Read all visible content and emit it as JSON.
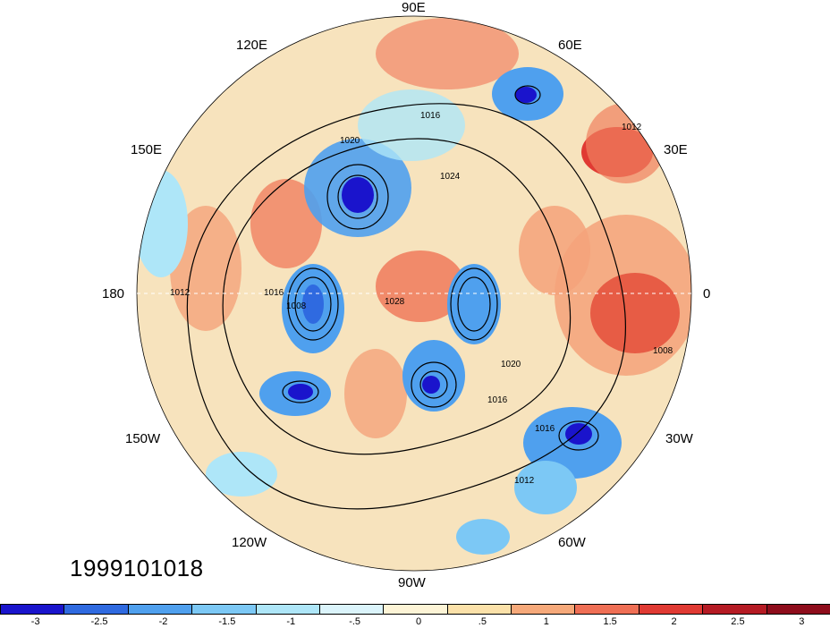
{
  "timestamp": "1999101018",
  "longitude_labels": {
    "lon_90e": "90E",
    "lon_60e": "60E",
    "lon_30e": "30E",
    "lon_0": "0",
    "lon_30w": "30W",
    "lon_60w": "60W",
    "lon_90w": "90W",
    "lon_120w": "120W",
    "lon_150w": "150W",
    "lon_180": "180",
    "lon_150e": "150E",
    "lon_120e": "120E"
  },
  "isobar_labels": [
    "1016",
    "1020",
    "1024",
    "1012",
    "1008",
    "1028",
    "1016",
    "1020",
    "1016",
    "1012",
    "1016",
    "1012",
    "1008"
  ],
  "colorbar": {
    "colors": [
      "#1a14cc",
      "#2f6ae0",
      "#4fa0ee",
      "#7cc8f5",
      "#aee6f8",
      "#dbf4fb",
      "#fdf4d6",
      "#fbe1a9",
      "#f6a97a",
      "#ef6f55",
      "#e03a33",
      "#b51b24",
      "#8e0d1c"
    ],
    "tick_labels": [
      "-3",
      "-2.5",
      "-2",
      "-1.5",
      "-1",
      "-.5",
      "0",
      ".5",
      "1",
      "1.5",
      "2",
      "2.5",
      "3"
    ]
  }
}
